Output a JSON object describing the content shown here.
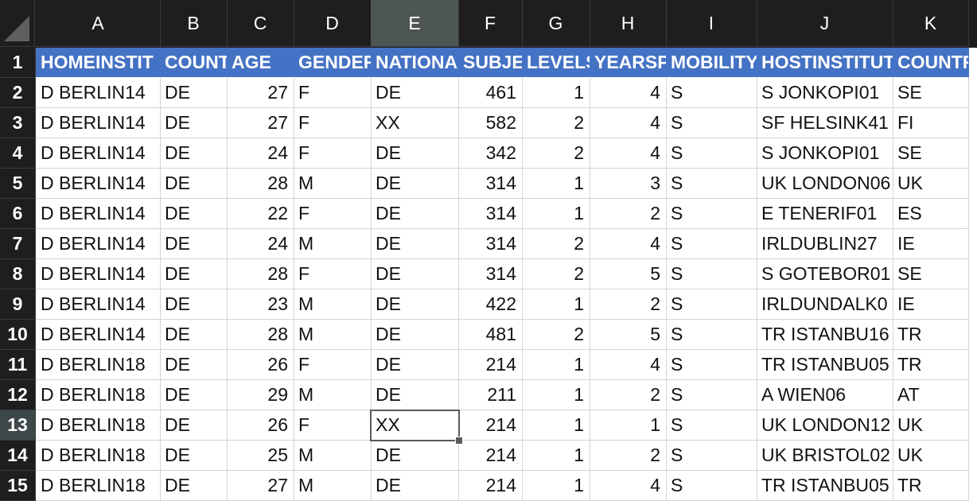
{
  "sheet": {
    "column_letters": [
      "A",
      "B",
      "C",
      "D",
      "E",
      "F",
      "G",
      "H",
      "I",
      "J",
      "K"
    ],
    "selected_column": "E",
    "selected_row": "13",
    "header_row_number": "1",
    "header_labels": [
      "HOMEINSTIT",
      "COUNT",
      "AGE",
      "GENDER",
      "NATIONA",
      "SUBJE(",
      "LEVELS",
      "YEARSP",
      "MOBILITY",
      "HOSTINSTITUT",
      "COUNTRY"
    ],
    "rows": [
      {
        "num": "2",
        "cells": [
          "D  BERLIN14",
          "DE",
          "27",
          "F",
          "DE",
          "461",
          "1",
          "4",
          "S",
          "S  JONKOPI01",
          "SE"
        ]
      },
      {
        "num": "3",
        "cells": [
          "D  BERLIN14",
          "DE",
          "27",
          "F",
          "XX",
          "582",
          "2",
          "4",
          "S",
          "SF HELSINK41",
          "FI"
        ]
      },
      {
        "num": "4",
        "cells": [
          "D  BERLIN14",
          "DE",
          "24",
          "F",
          "DE",
          "342",
          "2",
          "4",
          "S",
          "S  JONKOPI01",
          "SE"
        ]
      },
      {
        "num": "5",
        "cells": [
          "D  BERLIN14",
          "DE",
          "28",
          "M",
          "DE",
          "314",
          "1",
          "3",
          "S",
          "UK LONDON06",
          "UK"
        ]
      },
      {
        "num": "6",
        "cells": [
          "D  BERLIN14",
          "DE",
          "22",
          "F",
          "DE",
          "314",
          "1",
          "2",
          "S",
          "E  TENERIF01",
          "ES"
        ]
      },
      {
        "num": "7",
        "cells": [
          "D  BERLIN14",
          "DE",
          "24",
          "M",
          "DE",
          "314",
          "2",
          "4",
          "S",
          "IRLDUBLIN27",
          "IE"
        ]
      },
      {
        "num": "8",
        "cells": [
          "D  BERLIN14",
          "DE",
          "28",
          "F",
          "DE",
          "314",
          "2",
          "5",
          "S",
          "S  GOTEBOR01",
          "SE"
        ]
      },
      {
        "num": "9",
        "cells": [
          "D  BERLIN14",
          "DE",
          "23",
          "M",
          "DE",
          "422",
          "1",
          "2",
          "S",
          "IRLDUNDALK0",
          "IE"
        ]
      },
      {
        "num": "10",
        "cells": [
          "D  BERLIN14",
          "DE",
          "28",
          "M",
          "DE",
          "481",
          "2",
          "5",
          "S",
          "TR ISTANBU16",
          "TR"
        ]
      },
      {
        "num": "11",
        "cells": [
          "D  BERLIN18",
          "DE",
          "26",
          "F",
          "DE",
          "214",
          "1",
          "4",
          "S",
          "TR ISTANBU05",
          "TR"
        ]
      },
      {
        "num": "12",
        "cells": [
          "D  BERLIN18",
          "DE",
          "29",
          "M",
          "DE",
          "211",
          "1",
          "2",
          "S",
          "A  WIEN06",
          "AT"
        ]
      },
      {
        "num": "13",
        "cells": [
          "D  BERLIN18",
          "DE",
          "26",
          "F",
          "XX",
          "214",
          "1",
          "1",
          "S",
          "UK LONDON12",
          "UK"
        ]
      },
      {
        "num": "14",
        "cells": [
          "D  BERLIN18",
          "DE",
          "25",
          "M",
          "DE",
          "214",
          "1",
          "2",
          "S",
          "UK BRISTOL02",
          "UK"
        ]
      },
      {
        "num": "15",
        "cells": [
          "D  BERLIN18",
          "DE",
          "27",
          "M",
          "DE",
          "214",
          "1",
          "4",
          "S",
          "TR ISTANBU05",
          "TR"
        ]
      }
    ]
  },
  "colors": {
    "header_fill": "#4472c4",
    "chrome_dark": "#1e1e1e",
    "selected_header": "#4d5654"
  },
  "icons": {
    "corner": "select-all-triangle-icon"
  }
}
